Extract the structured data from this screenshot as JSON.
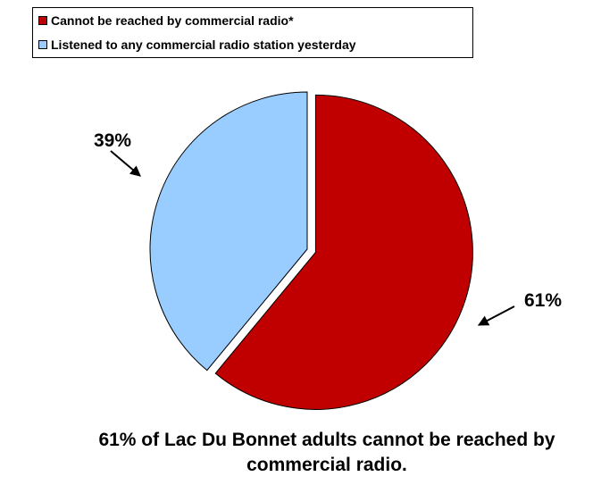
{
  "chart_data": {
    "type": "pie",
    "slices": [
      {
        "label": "Cannot be reached by commercial radio*",
        "value": 61,
        "value_label": "61%",
        "color": "#C00000",
        "exploded": true
      },
      {
        "label": "Listened to any commercial radio station yesterday",
        "value": 39,
        "value_label": "39%",
        "color": "#99CCFF",
        "exploded": false
      }
    ],
    "legend_position": "top-left",
    "caption": "61% of Lac Du Bonnet adults cannot be reached by commercial radio."
  }
}
